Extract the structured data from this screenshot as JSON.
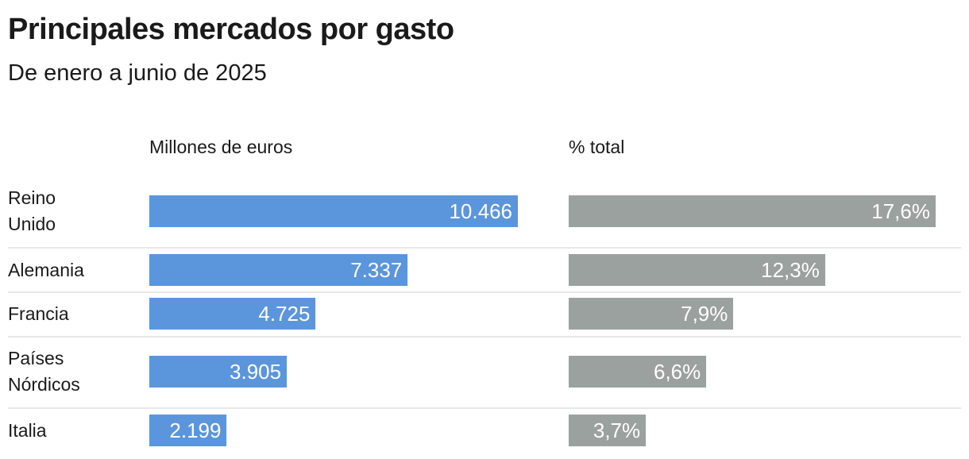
{
  "title": "Principales mercados por gasto",
  "subtitle": "De enero a junio de 2025",
  "chart_data": [
    {
      "type": "bar",
      "orientation": "horizontal",
      "column_header": "Millones de euros",
      "categories": [
        "Reino Unido",
        "Alemania",
        "Francia",
        "Países Nórdicos",
        "Italia"
      ],
      "values": [
        10466,
        7337,
        4725,
        3905,
        2199
      ],
      "data_labels": [
        "10.466",
        "7.337",
        "4.725",
        "3.905",
        "2.199"
      ],
      "color": "#5b96dc"
    },
    {
      "type": "bar",
      "orientation": "horizontal",
      "column_header": "% total",
      "categories": [
        "Reino Unido",
        "Alemania",
        "Francia",
        "Países Nórdicos",
        "Italia"
      ],
      "values": [
        17.6,
        12.3,
        7.9,
        6.6,
        3.7
      ],
      "data_labels": [
        "17,6%",
        "12,3%",
        "7,9%",
        "6,6%",
        "3,7%"
      ],
      "color": "#9aa19f"
    }
  ],
  "row_labels": [
    [
      "Reino",
      "Unido"
    ],
    [
      "Alemania"
    ],
    [
      "Francia"
    ],
    [
      "Países",
      "Nórdicos"
    ],
    [
      "Italia"
    ]
  ]
}
